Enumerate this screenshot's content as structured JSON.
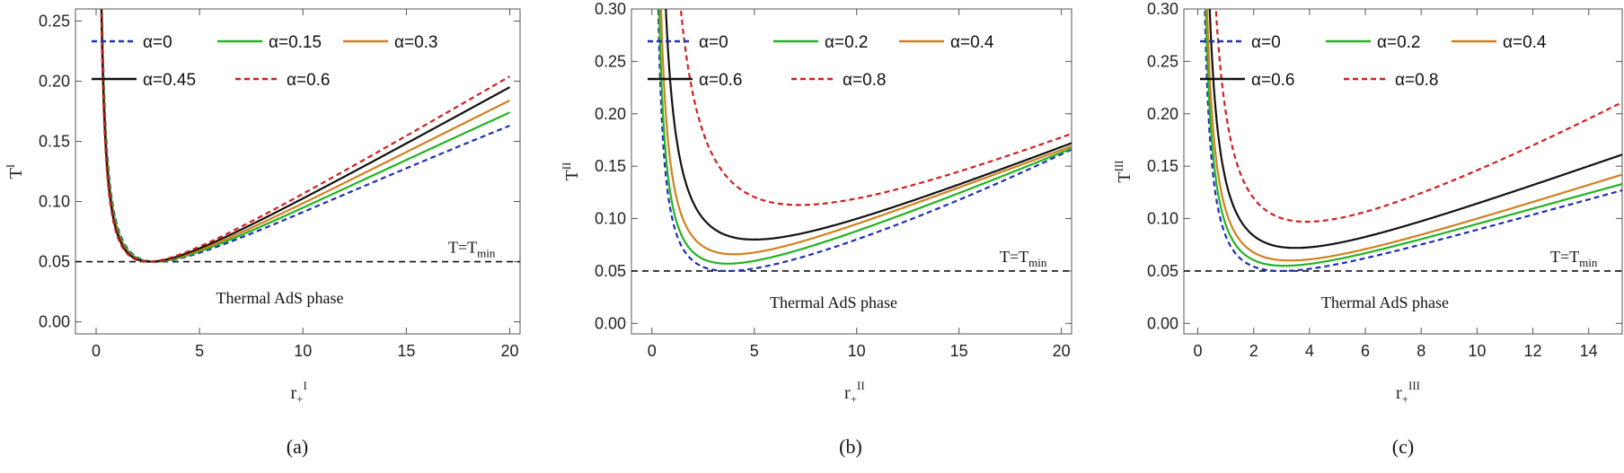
{
  "chart_data": [
    {
      "type": "line",
      "panel": "(a)",
      "xlabel": "r",
      "xlabel_sub": "+",
      "xlabel_sup": "I",
      "ylabel": "T",
      "ylabel_sup": "I",
      "xlim": [
        -1,
        20.5
      ],
      "ylim": [
        -0.01,
        0.26
      ],
      "xticks": [
        0,
        5,
        10,
        15,
        20
      ],
      "xtick_labels": [
        "0",
        "5",
        "10",
        "15",
        "20"
      ],
      "yticks": [
        0.0,
        0.05,
        0.1,
        0.15,
        0.2,
        0.25
      ],
      "ytick_labels": [
        "0.00",
        "0.05",
        "0.10",
        "0.15",
        "0.20",
        "0.25"
      ],
      "tmin": 0.05,
      "tmin_label": "T=T",
      "tmin_label_sub": "min",
      "region_label": "Thermal AdS phase",
      "series": [
        {
          "name": "α=0",
          "color": "#1f2fb5",
          "dashed": true,
          "r_min": 2.9,
          "t_min": 0.05,
          "x_end": 20,
          "t_end": 0.163
        },
        {
          "name": "α=0.15",
          "color": "#22b422",
          "dashed": false,
          "r_min": 2.8,
          "t_min": 0.05,
          "x_end": 20,
          "t_end": 0.174
        },
        {
          "name": "α=0.3",
          "color": "#d2801e",
          "dashed": false,
          "r_min": 2.7,
          "t_min": 0.05,
          "x_end": 20,
          "t_end": 0.184
        },
        {
          "name": "α=0.45",
          "color": "#111111",
          "dashed": false,
          "r_min": 2.6,
          "t_min": 0.05,
          "x_end": 20,
          "t_end": 0.195
        },
        {
          "name": "α=0.6",
          "color": "#d02020",
          "dashed": true,
          "r_min": 2.5,
          "t_min": 0.05,
          "x_end": 20,
          "t_end": 0.204
        }
      ]
    },
    {
      "type": "line",
      "panel": "(b)",
      "xlabel": "r",
      "xlabel_sub": "+",
      "xlabel_sup": "II",
      "ylabel": "T",
      "ylabel_sup": "II",
      "xlim": [
        -1,
        20.5
      ],
      "ylim": [
        -0.01,
        0.3
      ],
      "xticks": [
        0,
        5,
        10,
        15,
        20
      ],
      "xtick_labels": [
        "0",
        "5",
        "10",
        "15",
        "20"
      ],
      "yticks": [
        0.0,
        0.05,
        0.1,
        0.15,
        0.2,
        0.25,
        0.3
      ],
      "ytick_labels": [
        "0.00",
        "0.05",
        "0.10",
        "0.15",
        "0.20",
        "0.25",
        "0.30"
      ],
      "tmin": 0.05,
      "tmin_label": "T=T",
      "tmin_label_sub": "min",
      "region_label": "Thermal AdS phase",
      "series": [
        {
          "name": "α=0",
          "color": "#1f2fb5",
          "dashed": true,
          "r_min": 3.7,
          "t_min": 0.05,
          "x_end": 20.5,
          "t_end": 0.166
        },
        {
          "name": "α=0.2",
          "color": "#22b422",
          "dashed": false,
          "r_min": 3.7,
          "t_min": 0.057,
          "x_end": 20.5,
          "t_end": 0.167
        },
        {
          "name": "α=0.4",
          "color": "#d2801e",
          "dashed": false,
          "r_min": 4.0,
          "t_min": 0.066,
          "x_end": 20.5,
          "t_end": 0.169
        },
        {
          "name": "α=0.6",
          "color": "#111111",
          "dashed": false,
          "r_min": 5.0,
          "t_min": 0.08,
          "x_end": 20.5,
          "t_end": 0.172
        },
        {
          "name": "α=0.8",
          "color": "#d02020",
          "dashed": true,
          "r_min": 7.2,
          "t_min": 0.113,
          "x_end": 20.5,
          "t_end": 0.181
        }
      ]
    },
    {
      "type": "line",
      "panel": "(c)",
      "xlabel": "r",
      "xlabel_sub": "+",
      "xlabel_sup": "III",
      "ylabel": "T",
      "ylabel_sup": "III",
      "xlim": [
        -0.5,
        15.2
      ],
      "ylim": [
        -0.01,
        0.3
      ],
      "xticks": [
        0,
        2,
        4,
        6,
        8,
        10,
        12,
        14
      ],
      "xtick_labels": [
        "0",
        "2",
        "4",
        "6",
        "8",
        "10",
        "12",
        "14"
      ],
      "yticks": [
        0.0,
        0.05,
        0.1,
        0.15,
        0.2,
        0.25,
        0.3
      ],
      "ytick_labels": [
        "0.00",
        "0.05",
        "0.10",
        "0.15",
        "0.20",
        "0.25",
        "0.30"
      ],
      "tmin": 0.05,
      "tmin_label": "T=T",
      "tmin_label_sub": "min",
      "region_label": "Thermal AdS phase",
      "series": [
        {
          "name": "α=0",
          "color": "#1f2fb5",
          "dashed": true,
          "r_min": 3.0,
          "t_min": 0.05,
          "x_end": 15.2,
          "t_end": 0.127
        },
        {
          "name": "α=0.2",
          "color": "#22b422",
          "dashed": false,
          "r_min": 3.1,
          "t_min": 0.055,
          "x_end": 15.2,
          "t_end": 0.133
        },
        {
          "name": "α=0.4",
          "color": "#d2801e",
          "dashed": false,
          "r_min": 3.3,
          "t_min": 0.06,
          "x_end": 15.2,
          "t_end": 0.142
        },
        {
          "name": "α=0.6",
          "color": "#111111",
          "dashed": false,
          "r_min": 3.5,
          "t_min": 0.072,
          "x_end": 15.2,
          "t_end": 0.161
        },
        {
          "name": "α=0.8",
          "color": "#d02020",
          "dashed": true,
          "r_min": 3.9,
          "t_min": 0.097,
          "x_end": 15.2,
          "t_end": 0.211
        }
      ]
    }
  ]
}
